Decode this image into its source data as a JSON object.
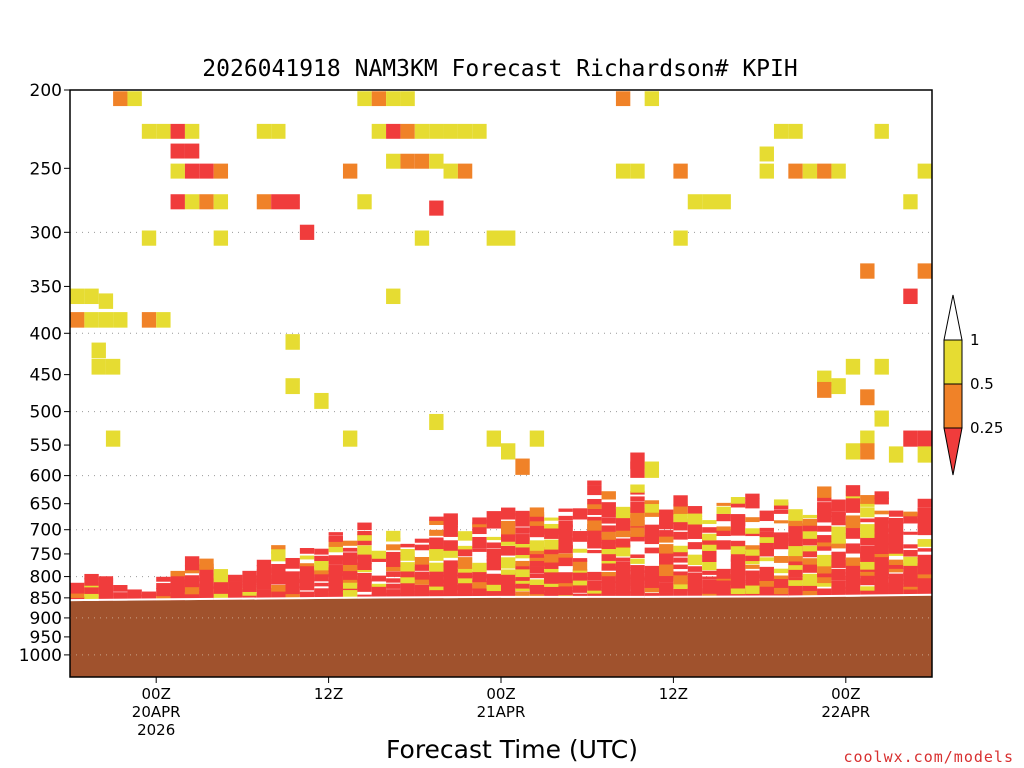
{
  "chart_data": {
    "type": "heatmap",
    "title": "2026041918 NAM3KM Forecast Richardson# KPIH",
    "xlabel": "Forecast Time (UTC)",
    "ylabel": "",
    "credit": "coolwx.com/models",
    "y_axis": {
      "scale": "log",
      "reversed": true,
      "range": [
        200,
        1000
      ],
      "ticks": [
        "200",
        "250",
        "300",
        "350",
        "400",
        "450",
        "500",
        "550",
        "600",
        "650",
        "700",
        "750",
        "800",
        "850",
        "900",
        "950",
        "1000"
      ],
      "dotted_grid": [
        300,
        400,
        500,
        600,
        700,
        800,
        900
      ]
    },
    "x_axis": {
      "range_hours": [
        0,
        60
      ],
      "ticks": [
        {
          "hour": 6,
          "lines": [
            "00Z",
            "20APR",
            "2026"
          ]
        },
        {
          "hour": 18,
          "lines": [
            "12Z"
          ]
        },
        {
          "hour": 30,
          "lines": [
            "00Z",
            "21APR"
          ]
        },
        {
          "hour": 42,
          "lines": [
            "12Z"
          ]
        },
        {
          "hour": 54,
          "lines": [
            "00Z",
            "22APR"
          ]
        }
      ]
    },
    "legend": {
      "labels": [
        "1",
        "0.5",
        "0.25"
      ],
      "bins": [
        {
          "range": "> 1",
          "color": "#ffffff"
        },
        {
          "range": "0.5 - 1",
          "color": "#e6dc32"
        },
        {
          "range": "0.25 - 0.5",
          "color": "#f08228"
        },
        {
          "range": "< 0.25",
          "color": "#f03c3c"
        }
      ]
    },
    "ground": {
      "color": "#a0522d",
      "top_hpa_by_hour": [
        [
          0,
          858
        ],
        [
          10,
          855
        ],
        [
          20,
          852
        ],
        [
          30,
          850
        ],
        [
          40,
          850
        ],
        [
          50,
          849
        ],
        [
          60,
          845
        ]
      ]
    },
    "cells": [
      {
        "t": 3.5,
        "p": 205,
        "v": 0.3
      },
      {
        "t": 4.5,
        "p": 205,
        "v": 0.7
      },
      {
        "t": 5.5,
        "p": 225,
        "v": 0.7
      },
      {
        "t": 6.5,
        "p": 225,
        "v": 0.7
      },
      {
        "t": 7.5,
        "p": 225,
        "v": 0.1
      },
      {
        "t": 8.5,
        "p": 225,
        "v": 0.7
      },
      {
        "t": 7.5,
        "p": 238,
        "v": 0.1
      },
      {
        "t": 8.5,
        "p": 238,
        "v": 0.1
      },
      {
        "t": 7.5,
        "p": 252,
        "v": 0.7
      },
      {
        "t": 8.5,
        "p": 252,
        "v": 0.1
      },
      {
        "t": 9.5,
        "p": 252,
        "v": 0.1
      },
      {
        "t": 10.5,
        "p": 252,
        "v": 0.3
      },
      {
        "t": 7.5,
        "p": 275,
        "v": 0.1
      },
      {
        "t": 8.5,
        "p": 275,
        "v": 0.7
      },
      {
        "t": 9.5,
        "p": 275,
        "v": 0.3
      },
      {
        "t": 10.5,
        "p": 275,
        "v": 0.7
      },
      {
        "t": 5.5,
        "p": 305,
        "v": 0.7
      },
      {
        "t": 10.5,
        "p": 305,
        "v": 0.7
      },
      {
        "t": 13.5,
        "p": 225,
        "v": 0.7
      },
      {
        "t": 14.5,
        "p": 225,
        "v": 0.7
      },
      {
        "t": 13.5,
        "p": 275,
        "v": 0.3
      },
      {
        "t": 14.5,
        "p": 275,
        "v": 0.1
      },
      {
        "t": 15.5,
        "p": 275,
        "v": 0.1
      },
      {
        "t": 16.5,
        "p": 300,
        "v": 0.1
      },
      {
        "t": 19.5,
        "p": 252,
        "v": 0.3
      },
      {
        "t": 20.5,
        "p": 275,
        "v": 0.7
      },
      {
        "t": 20.5,
        "p": 205,
        "v": 0.7
      },
      {
        "t": 21.5,
        "p": 205,
        "v": 0.3
      },
      {
        "t": 22.5,
        "p": 205,
        "v": 0.7
      },
      {
        "t": 23.5,
        "p": 205,
        "v": 0.7
      },
      {
        "t": 21.5,
        "p": 225,
        "v": 0.7
      },
      {
        "t": 22.5,
        "p": 225,
        "v": 0.1
      },
      {
        "t": 23.5,
        "p": 225,
        "v": 0.3
      },
      {
        "t": 24.5,
        "p": 225,
        "v": 0.7
      },
      {
        "t": 25.5,
        "p": 225,
        "v": 0.7
      },
      {
        "t": 26.5,
        "p": 225,
        "v": 0.7
      },
      {
        "t": 27.5,
        "p": 225,
        "v": 0.7
      },
      {
        "t": 28.5,
        "p": 225,
        "v": 0.7
      },
      {
        "t": 22.5,
        "p": 245,
        "v": 0.7
      },
      {
        "t": 23.5,
        "p": 245,
        "v": 0.3
      },
      {
        "t": 24.5,
        "p": 245,
        "v": 0.3
      },
      {
        "t": 25.5,
        "p": 245,
        "v": 0.7
      },
      {
        "t": 26.5,
        "p": 252,
        "v": 0.7
      },
      {
        "t": 27.5,
        "p": 252,
        "v": 0.3
      },
      {
        "t": 22.5,
        "p": 360,
        "v": 0.7
      },
      {
        "t": 25.5,
        "p": 280,
        "v": 0.1
      },
      {
        "t": 24.5,
        "p": 305,
        "v": 0.7
      },
      {
        "t": 29.5,
        "p": 305,
        "v": 0.7
      },
      {
        "t": 30.5,
        "p": 305,
        "v": 0.7
      },
      {
        "t": 38.5,
        "p": 205,
        "v": 0.3
      },
      {
        "t": 40.5,
        "p": 205,
        "v": 0.7
      },
      {
        "t": 38.5,
        "p": 252,
        "v": 0.7
      },
      {
        "t": 39.5,
        "p": 252,
        "v": 0.7
      },
      {
        "t": 42.5,
        "p": 252,
        "v": 0.3
      },
      {
        "t": 42.5,
        "p": 305,
        "v": 0.7
      },
      {
        "t": 43.5,
        "p": 275,
        "v": 0.7
      },
      {
        "t": 44.5,
        "p": 275,
        "v": 0.7
      },
      {
        "t": 45.5,
        "p": 275,
        "v": 0.7
      },
      {
        "t": 48.5,
        "p": 240,
        "v": 0.7
      },
      {
        "t": 49.5,
        "p": 225,
        "v": 0.7
      },
      {
        "t": 50.5,
        "p": 225,
        "v": 0.7
      },
      {
        "t": 48.5,
        "p": 252,
        "v": 0.7
      },
      {
        "t": 50.5,
        "p": 252,
        "v": 0.3
      },
      {
        "t": 51.5,
        "p": 252,
        "v": 0.7
      },
      {
        "t": 52.5,
        "p": 252,
        "v": 0.3
      },
      {
        "t": 53.5,
        "p": 252,
        "v": 0.7
      },
      {
        "t": 56.5,
        "p": 225,
        "v": 0.7
      },
      {
        "t": 59.5,
        "p": 252,
        "v": 0.7
      },
      {
        "t": 58.5,
        "p": 275,
        "v": 0.7
      },
      {
        "t": 59.5,
        "p": 335,
        "v": 0.3
      },
      {
        "t": 55.5,
        "p": 335,
        "v": 0.3
      },
      {
        "t": 58.5,
        "p": 360,
        "v": 0.1
      },
      {
        "t": 0.5,
        "p": 360,
        "v": 0.7
      },
      {
        "t": 1.5,
        "p": 360,
        "v": 0.7
      },
      {
        "t": 2.5,
        "p": 365,
        "v": 0.7
      },
      {
        "t": 0.5,
        "p": 385,
        "v": 0.3
      },
      {
        "t": 1.5,
        "p": 385,
        "v": 0.7
      },
      {
        "t": 2.5,
        "p": 385,
        "v": 0.7
      },
      {
        "t": 3.5,
        "p": 385,
        "v": 0.7
      },
      {
        "t": 5.5,
        "p": 385,
        "v": 0.3
      },
      {
        "t": 6.5,
        "p": 385,
        "v": 0.7
      },
      {
        "t": 2.0,
        "p": 420,
        "v": 0.7
      },
      {
        "t": 2.0,
        "p": 440,
        "v": 0.7
      },
      {
        "t": 3.0,
        "p": 440,
        "v": 0.7
      },
      {
        "t": 15.5,
        "p": 410,
        "v": 0.7
      },
      {
        "t": 15.5,
        "p": 465,
        "v": 0.7
      },
      {
        "t": 17.5,
        "p": 485,
        "v": 0.7
      },
      {
        "t": 3.0,
        "p": 540,
        "v": 0.7
      },
      {
        "t": 19.5,
        "p": 540,
        "v": 0.7
      },
      {
        "t": 25.5,
        "p": 515,
        "v": 0.7
      },
      {
        "t": 29.5,
        "p": 540,
        "v": 0.7
      },
      {
        "t": 30.5,
        "p": 560,
        "v": 0.7
      },
      {
        "t": 32.5,
        "p": 540,
        "v": 0.7
      },
      {
        "t": 31.5,
        "p": 585,
        "v": 0.3
      },
      {
        "t": 52.5,
        "p": 455,
        "v": 0.7
      },
      {
        "t": 54.5,
        "p": 440,
        "v": 0.7
      },
      {
        "t": 56.5,
        "p": 440,
        "v": 0.7
      },
      {
        "t": 52.5,
        "p": 470,
        "v": 0.3
      },
      {
        "t": 53.5,
        "p": 465,
        "v": 0.7
      },
      {
        "t": 55.5,
        "p": 480,
        "v": 0.3
      },
      {
        "t": 56.5,
        "p": 510,
        "v": 0.7
      },
      {
        "t": 55.5,
        "p": 540,
        "v": 0.7
      },
      {
        "t": 58.5,
        "p": 540,
        "v": 0.1
      },
      {
        "t": 59.5,
        "p": 540,
        "v": 0.1
      },
      {
        "t": 54.5,
        "p": 560,
        "v": 0.7
      },
      {
        "t": 55.5,
        "p": 560,
        "v": 0.3
      },
      {
        "t": 57.5,
        "p": 565,
        "v": 0.7
      },
      {
        "t": 59.5,
        "p": 565,
        "v": 0.7
      },
      {
        "t": 39.5,
        "p": 575,
        "v": 0.1
      },
      {
        "t": 39.5,
        "p": 590,
        "v": 0.1
      },
      {
        "t": 40.5,
        "p": 590,
        "v": 0.7
      }
    ]
  }
}
